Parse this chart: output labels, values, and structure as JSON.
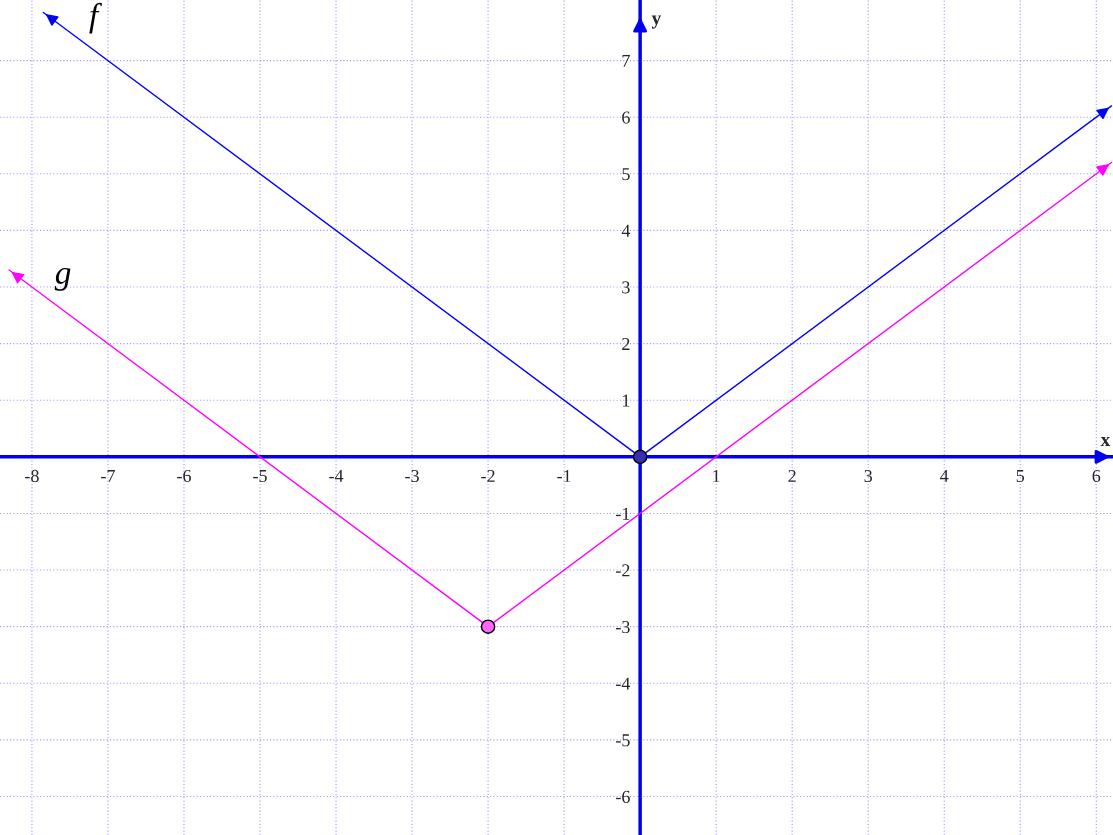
{
  "chart_data": {
    "type": "line",
    "xlabel": "x",
    "ylabel": "y",
    "xlim": [
      -8.42,
      6.22
    ],
    "ylim": [
      -6.68,
      8.07
    ],
    "xticks": [
      -8,
      -7,
      -6,
      -5,
      -4,
      -3,
      -2,
      -1,
      1,
      2,
      3,
      4,
      5,
      6
    ],
    "yticks": [
      -6,
      -5,
      -4,
      -3,
      -2,
      -1,
      1,
      2,
      3,
      4,
      5,
      6,
      7
    ],
    "grid": true,
    "legend": "top left",
    "series": [
      {
        "name": "f",
        "color": "#0000ff",
        "x": [
          -7.85,
          0,
          6.2
        ],
        "values": [
          7.85,
          0,
          6.2
        ],
        "marker": "none"
      },
      {
        "name": "g",
        "color": "#ff00ff",
        "x": [
          -8.3,
          -2,
          6.2
        ],
        "values": [
          3.3,
          -3,
          5.2
        ],
        "marker": "none"
      },
      {
        "type": "scatter",
        "color": "#3a2fb0",
        "x": [
          0
        ],
        "values": [
          0
        ],
        "marker": "circle"
      },
      {
        "type": "scatter",
        "color": "#ff66ff",
        "x": [
          -2
        ],
        "values": [
          -3
        ],
        "marker": "circle"
      }
    ]
  }
}
